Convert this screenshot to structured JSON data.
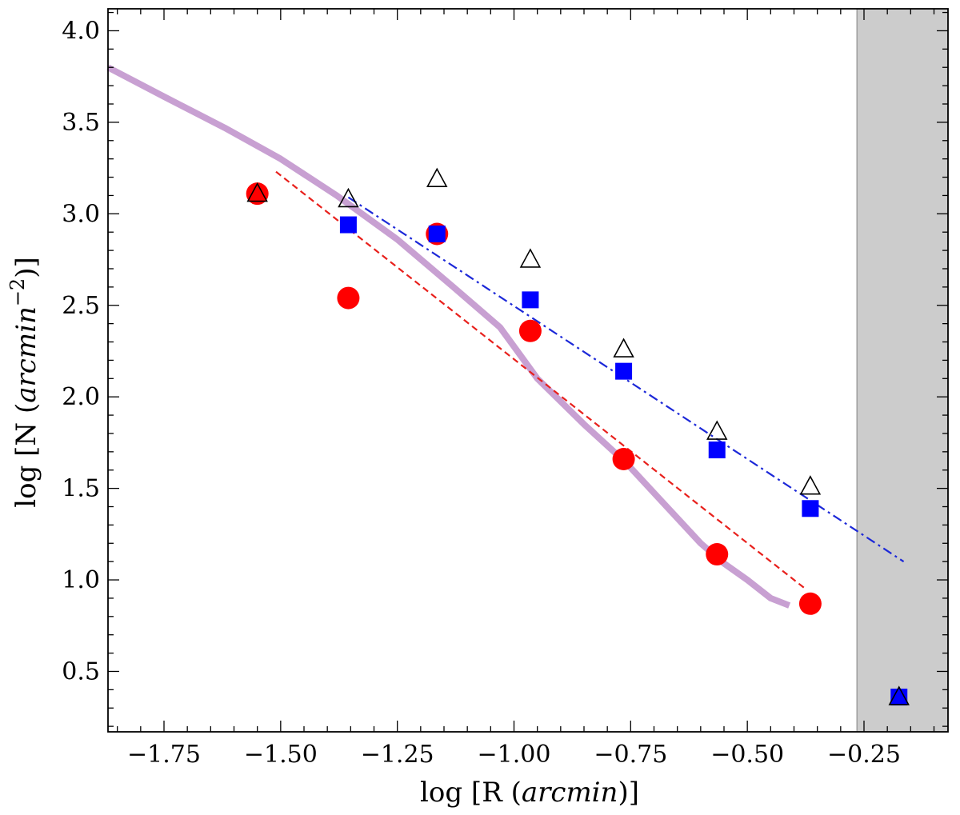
{
  "chart_data": {
    "type": "scatter",
    "xlabel": {
      "prefix": "log [R (",
      "unit": "arcmin",
      "suffix": ")]"
    },
    "ylabel": {
      "prefix": "log [N (",
      "unit": "arcmin",
      "exp": "−2",
      "suffix": ")]"
    },
    "xlim": [
      -1.87,
      -0.07
    ],
    "ylim": [
      0.17,
      4.12
    ],
    "xticks": [
      -1.75,
      -1.5,
      -1.25,
      -1.0,
      -0.75,
      -0.5,
      -0.25
    ],
    "xtick_labels": [
      "−1.75",
      "−1.50",
      "−1.25",
      "−1.00",
      "−0.75",
      "−0.50",
      "−0.25"
    ],
    "yticks": [
      0.5,
      1.0,
      1.5,
      2.0,
      2.5,
      3.0,
      3.5,
      4.0
    ],
    "ytick_labels": [
      "0.5",
      "1.0",
      "1.5",
      "2.0",
      "2.5",
      "3.0",
      "3.5",
      "4.0"
    ],
    "minor_step_x": 0.05,
    "minor_step_y": 0.1,
    "shaded_region": {
      "x": [
        -0.265,
        -0.07
      ],
      "color": "#cccccc"
    },
    "series": [
      {
        "marker": "curve",
        "color": "#c8a0d2",
        "x": [
          -1.87,
          -1.75,
          -1.62,
          -1.5,
          -1.38,
          -1.25,
          -1.13,
          -1.03,
          -0.95,
          -0.85,
          -0.76,
          -0.68,
          -0.6,
          -0.55,
          -0.5,
          -0.45,
          -0.41
        ],
        "y": [
          3.8,
          3.64,
          3.47,
          3.3,
          3.1,
          2.86,
          2.6,
          2.38,
          2.1,
          1.85,
          1.64,
          1.42,
          1.2,
          1.09,
          1.0,
          0.9,
          0.86
        ]
      },
      {
        "marker": "dashed-line",
        "color": "#e8201c",
        "x": [
          -1.51,
          -0.375
        ],
        "y": [
          3.23,
          0.95
        ]
      },
      {
        "marker": "dashdot-line",
        "color": "#1c28d8",
        "x": [
          -1.355,
          -0.165
        ],
        "y": [
          3.09,
          1.1
        ]
      },
      {
        "marker": "circle",
        "color": "#ff0000",
        "x": [
          -1.55,
          -1.355,
          -1.165,
          -0.965,
          -0.765,
          -0.565,
          -0.365
        ],
        "y": [
          3.11,
          2.54,
          2.89,
          2.36,
          1.66,
          1.14,
          0.87
        ]
      },
      {
        "marker": "square",
        "color": "#0000ff",
        "x": [
          -1.355,
          -1.165,
          -0.965,
          -0.765,
          -0.565,
          -0.365,
          -0.175
        ],
        "y": [
          2.94,
          2.89,
          2.53,
          2.14,
          1.71,
          1.39,
          0.36
        ]
      },
      {
        "marker": "triangle",
        "color": "#000000",
        "x": [
          -1.55,
          -1.355,
          -1.165,
          -0.965,
          -0.765,
          -0.565,
          -0.365,
          -0.175
        ],
        "y": [
          3.11,
          3.08,
          3.19,
          2.75,
          2.26,
          1.81,
          1.51,
          0.36
        ]
      }
    ]
  }
}
